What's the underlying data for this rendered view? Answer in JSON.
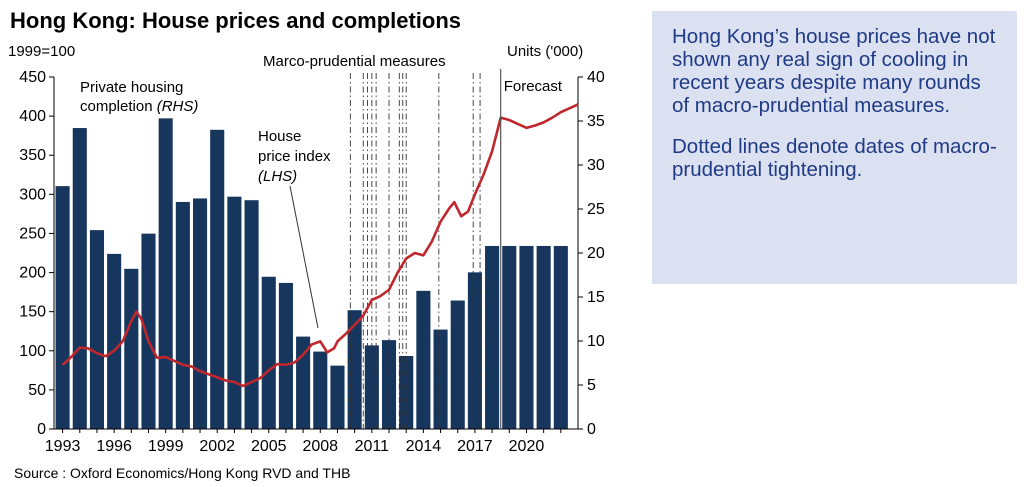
{
  "chart_data": {
    "type": "bar+line",
    "title": "Hong Kong: House prices and completions",
    "left_axis_label": "1999=100",
    "right_axis_label": "Units ('000)",
    "source": "Source : Oxford Economics/Hong Kong RVD and THB",
    "left_ylim": [
      0,
      450
    ],
    "left_ticks": [
      0,
      50,
      100,
      150,
      200,
      250,
      300,
      350,
      400,
      450
    ],
    "right_ylim": [
      0,
      40
    ],
    "right_ticks": [
      0,
      5,
      10,
      15,
      20,
      25,
      30,
      35,
      40
    ],
    "x_ticks": [
      "1993",
      "1996",
      "1999",
      "2002",
      "2005",
      "2008",
      "2011",
      "2014",
      "2017",
      "2020"
    ],
    "x_range": [
      1992.5,
      2023
    ],
    "bars": {
      "name": "Private housing completion (RHS)",
      "axis": "right",
      "color": "#17365d",
      "x": [
        1993,
        1994,
        1995,
        1996,
        1997,
        1998,
        1999,
        2000,
        2001,
        2002,
        2003,
        2004,
        2005,
        2006,
        2007,
        2008,
        2009,
        2010,
        2011,
        2012,
        2013,
        2014,
        2015,
        2016,
        2017,
        2018,
        2019,
        2020,
        2021,
        2022
      ],
      "values": [
        27.6,
        34.2,
        22.6,
        19.9,
        18.2,
        22.2,
        35.3,
        25.8,
        26.2,
        34.0,
        26.4,
        26.0,
        17.3,
        16.6,
        10.5,
        8.8,
        7.2,
        13.5,
        9.5,
        10.1,
        8.3,
        15.7,
        11.3,
        14.6,
        17.8,
        20.8,
        20.8,
        20.8,
        20.8,
        20.8
      ]
    },
    "line": {
      "name": "House price index (LHS)",
      "axis": "left",
      "color": "#c0272d",
      "x": [
        1993.0,
        1993.5,
        1994.0,
        1994.5,
        1995.0,
        1995.5,
        1996.0,
        1996.5,
        1997.0,
        1997.3,
        1997.6,
        1998.0,
        1998.5,
        1999.0,
        1999.5,
        2000.0,
        2000.5,
        2001.0,
        2001.5,
        2002.0,
        2002.5,
        2003.0,
        2003.5,
        2004.0,
        2004.5,
        2005.0,
        2005.5,
        2006.0,
        2006.5,
        2007.0,
        2007.5,
        2008.0,
        2008.4,
        2008.8,
        2009.0,
        2009.5,
        2010.0,
        2010.5,
        2011.0,
        2011.5,
        2012.0,
        2012.5,
        2013.0,
        2013.5,
        2014.0,
        2014.5,
        2015.0,
        2015.5,
        2015.8,
        2016.2,
        2016.6,
        2017.0,
        2017.5,
        2018.0,
        2018.5,
        2019.0,
        2019.5,
        2020.0,
        2020.5,
        2021.0,
        2021.5,
        2022.0,
        2022.5,
        2023.0
      ],
      "values": [
        82,
        92,
        104,
        103,
        97,
        93,
        100,
        112,
        138,
        150,
        140,
        112,
        91,
        92,
        87,
        82,
        80,
        74,
        70,
        66,
        62,
        60,
        55,
        60,
        65,
        75,
        83,
        82,
        85,
        95,
        108,
        112,
        98,
        103,
        112,
        122,
        133,
        145,
        165,
        170,
        178,
        200,
        218,
        225,
        222,
        240,
        265,
        282,
        290,
        272,
        278,
        300,
        325,
        355,
        398,
        395,
        390,
        385,
        388,
        392,
        398,
        405,
        410,
        415
      ]
    },
    "forecast_start": 2018.5,
    "forecast_label": "Forecast",
    "measures_label": "Marco-prudential measures",
    "measure_dates": [
      2009.75,
      2010.5,
      2010.75,
      2011.0,
      2011.25,
      2012.0,
      2012.6,
      2012.8,
      2013.0,
      2014.9,
      2016.9,
      2017.3
    ],
    "annotations": {
      "completion_line1": "Private housing",
      "completion_line2": "completion ",
      "completion_line2_italic": "(RHS)",
      "price_line1": "House",
      "price_line2": "price index",
      "price_line3": "(LHS)"
    }
  },
  "note": {
    "paragraph1": "Hong Kong’s house prices have not shown any real sign of cooling in recent years despite many rounds of macro-prudential measures.",
    "paragraph2": "Dotted lines denote dates of macro-prudential tightening."
  }
}
